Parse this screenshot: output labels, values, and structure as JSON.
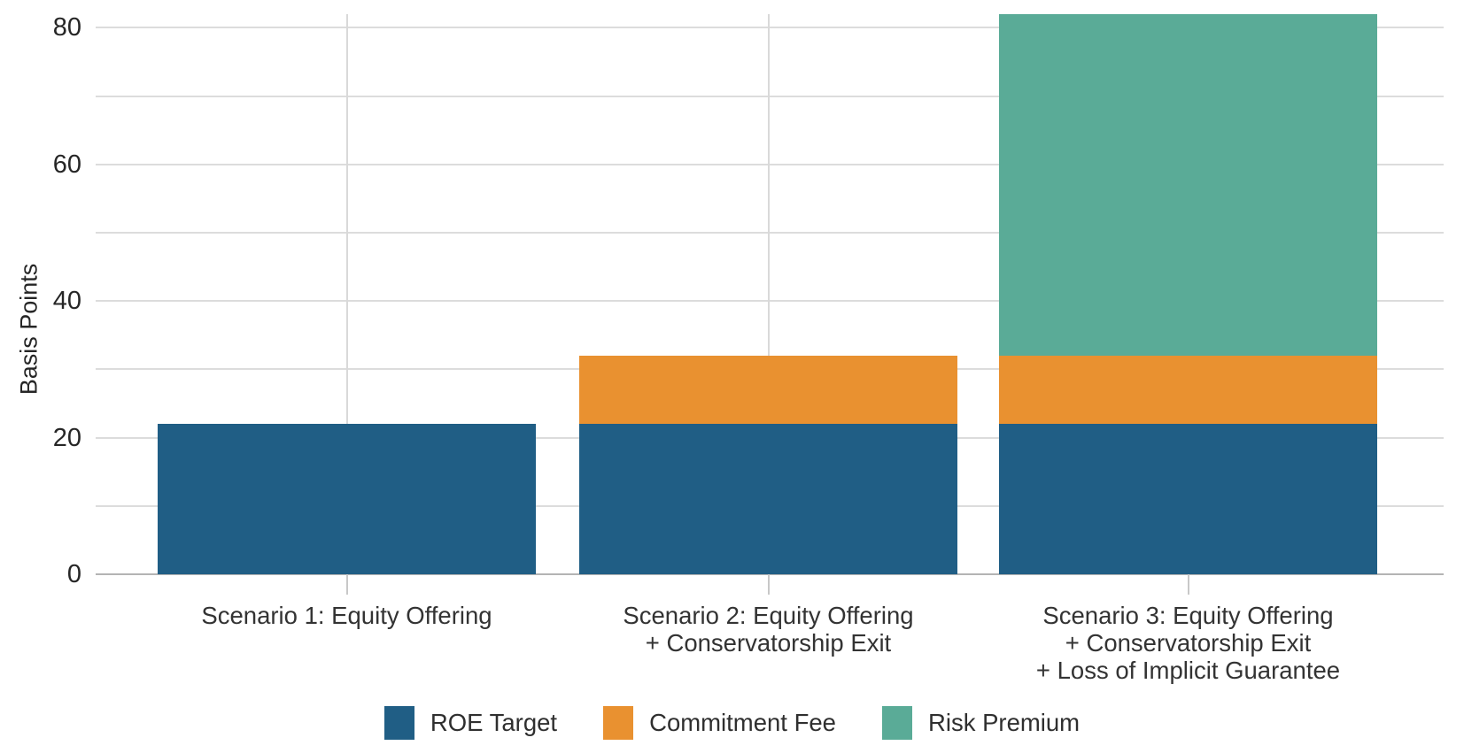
{
  "chart_data": {
    "type": "bar",
    "stacked": true,
    "title": "",
    "xlabel": "",
    "ylabel": "Basis Points",
    "ylim": [
      0,
      82.6
    ],
    "y_ticks": [
      0,
      20,
      40,
      60,
      80
    ],
    "y_gridline_values": [
      10,
      20,
      30,
      40,
      50,
      60,
      70,
      80
    ],
    "grid": "on",
    "legend_position": "bottom center",
    "categories": [
      "Scenario 1: Equity Offering",
      "Scenario 2: Equity Offering + Conservatorship Exit",
      "Scenario 3: Equity Offering + Conservatorship Exit + Loss of Implicit Guarantee"
    ],
    "category_label_lines": [
      [
        "Scenario 1: Equity Offering"
      ],
      [
        "Scenario 2: Equity Offering",
        "+ Conservatorship Exit"
      ],
      [
        "Scenario 3: Equity Offering",
        "+ Conservatorship Exit",
        "+ Loss of Implicit Guarantee"
      ]
    ],
    "series": [
      {
        "name": "ROE Target",
        "color": "#205e85",
        "values": [
          22,
          22,
          22
        ]
      },
      {
        "name": "Commitment Fee",
        "color": "#e99130",
        "values": [
          0,
          10,
          10
        ]
      },
      {
        "name": "Risk Premium",
        "color": "#5aab97",
        "values": [
          0,
          0,
          50
        ]
      }
    ],
    "totals": [
      22,
      32,
      82
    ]
  },
  "colors": {
    "background": "#ffffff",
    "gridline": "#dcdcdc",
    "axis_line": "#b4b4b4",
    "tick_mark": "#c8c8c8",
    "text": "#2f2f2f"
  }
}
